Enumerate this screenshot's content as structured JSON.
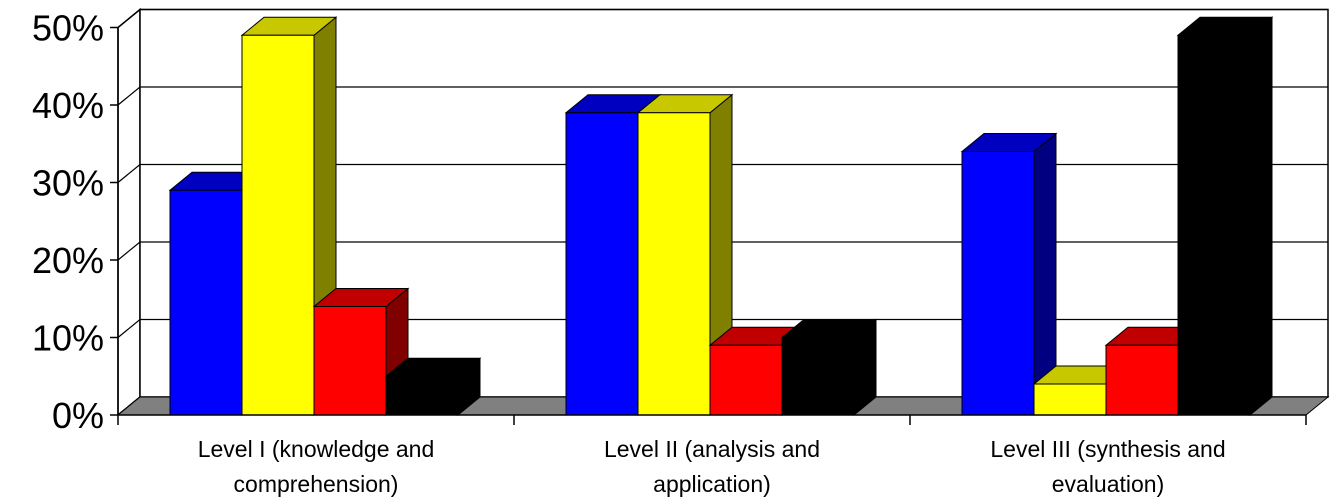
{
  "chart_data": {
    "type": "bar",
    "style": "3d-clustered-column",
    "categories": [
      [
        "Level I (knowledge and",
        "comprehension)"
      ],
      [
        "Level II (analysis and",
        "application)"
      ],
      [
        "Level III (synthesis and",
        "evaluation)"
      ]
    ],
    "series": [
      {
        "values": [
          29,
          39,
          34
        ],
        "color": "#0000FF",
        "top_color": "#0000C0",
        "side_color": "#000080"
      },
      {
        "values": [
          49,
          39,
          4
        ],
        "color": "#FFFF00",
        "top_color": "#C8C800",
        "side_color": "#808000"
      },
      {
        "values": [
          14,
          9,
          9
        ],
        "color": "#FF0000",
        "top_color": "#C00000",
        "side_color": "#800000"
      },
      {
        "values": [
          5,
          10,
          49
        ],
        "color": "#000000",
        "top_color": "#000000",
        "side_color": "#000000"
      }
    ],
    "yticks": [
      "0%",
      "10%",
      "20%",
      "30%",
      "40%",
      "50%"
    ],
    "ylim": [
      0,
      50
    ],
    "grid": true,
    "legend": "none",
    "floor_color": "#808080"
  }
}
